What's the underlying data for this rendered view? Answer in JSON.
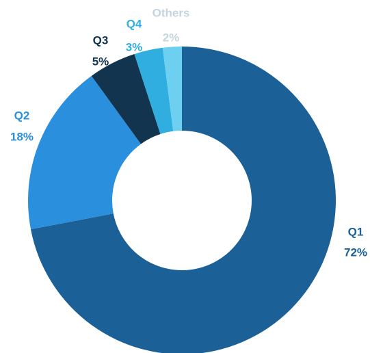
{
  "chart_data": {
    "type": "donut",
    "categories": [
      "Q1",
      "Q2",
      "Q3",
      "Q4",
      "Others"
    ],
    "values": [
      72,
      18,
      5,
      3,
      2
    ],
    "value_labels": [
      "72%",
      "18%",
      "5%",
      "3%",
      "2%"
    ],
    "colors": [
      "#1b6096",
      "#2a8fdc",
      "#12344f",
      "#30aee0",
      "#6dd0f0"
    ],
    "label_colors": [
      "#1b6096",
      "#2a8fdc",
      "#12344f",
      "#30aee0",
      "#c5d5dd"
    ]
  }
}
